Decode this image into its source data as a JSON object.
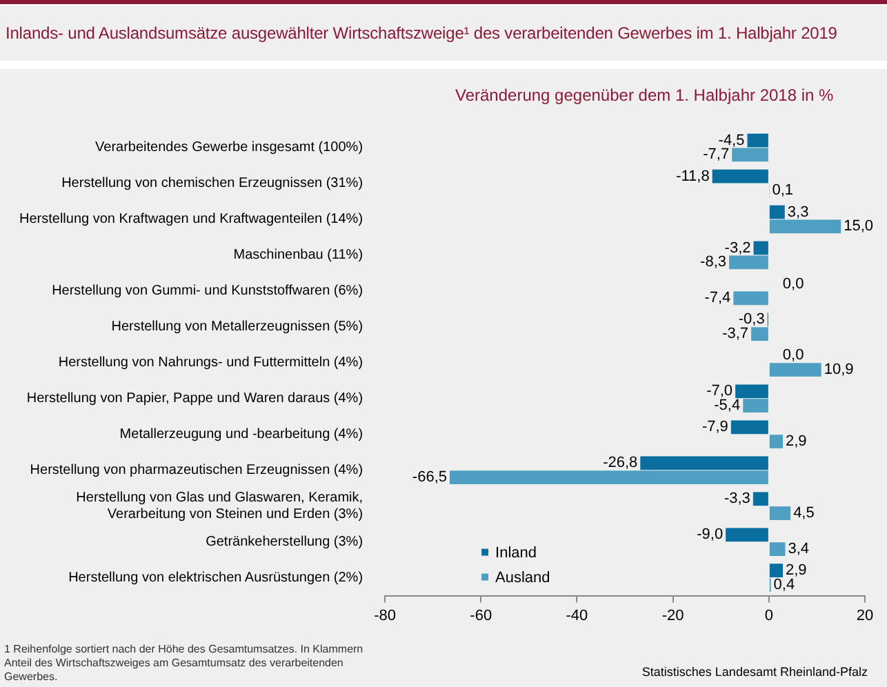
{
  "chart_data": {
    "type": "bar",
    "orientation": "horizontal",
    "title": "Inlands- und Auslandsumsätze ausgewählter Wirtschaftszweige¹ des verarbeitenden Gewerbes im 1. Halbjahr 2019",
    "subtitle": "Veränderung gegenüber dem 1. Halbjahr 2018 in %",
    "categories": [
      "Verarbeitendes Gewerbe insgesamt (100%)",
      "Herstellung von chemischen Erzeugnissen (31%)",
      "Herstellung von Kraftwagen und Kraftwagenteilen (14%)",
      "Maschinenbau (11%)",
      "Herstellung von Gummi- und Kunststoffwaren (6%)",
      "Herstellung von Metallerzeugnissen (5%)",
      "Herstellung von Nahrungs- und Futtermitteln (4%)",
      "Herstellung von Papier, Pappe und Waren daraus (4%)",
      "Metallerzeugung und -bearbeitung (4%)",
      "Herstellung von pharmazeutischen Erzeugnissen (4%)",
      "Herstellung von Glas und Glaswaren, Keramik, Verarbeitung von Steinen und Erden (3%)",
      "Getränkeherstellung (3%)",
      "Herstellung von elektrischen Ausrüstungen (2%)"
    ],
    "series": [
      {
        "name": "Inland",
        "color": "#0a6e9e",
        "values": [
          -4.5,
          -11.8,
          3.3,
          -3.2,
          0.0,
          -0.3,
          0.0,
          -7.0,
          -7.9,
          -26.8,
          -3.3,
          -9.0,
          2.9
        ],
        "value_labels": [
          "-4,5",
          "-11,8",
          "3,3",
          "-3,2",
          "0,0",
          "-0,3",
          "0,0",
          "-7,0",
          "-7,9",
          "-26,8",
          "-3,3",
          "-9,0",
          "2,9"
        ]
      },
      {
        "name": "Ausland",
        "color": "#4f9fc3",
        "values": [
          -7.7,
          0.1,
          15.0,
          -8.3,
          -7.4,
          -3.7,
          10.9,
          -5.4,
          2.9,
          -66.5,
          4.5,
          3.4,
          0.4
        ],
        "value_labels": [
          "-7,7",
          "0,1",
          "15,0",
          "-8,3",
          "-7,4",
          "-3,7",
          "10,9",
          "-5,4",
          "2,9",
          "-66,5",
          "4,5",
          "3,4",
          "0,4"
        ]
      }
    ],
    "xlim": [
      -80,
      20
    ],
    "xticks": [
      -80,
      -60,
      -40,
      -20,
      0,
      20
    ],
    "grid": false,
    "legend": "bottom left",
    "annotations": [
      "1 Reihenfolge sortiert nach der Höhe des Gesamtumsatzes. In Klammern Anteil des Wirtschaftszweiges am Gesamtumsatz des verarbeitenden Gewerbes.",
      "Statistisches Landesamt Rheinland-Pfalz"
    ]
  }
}
